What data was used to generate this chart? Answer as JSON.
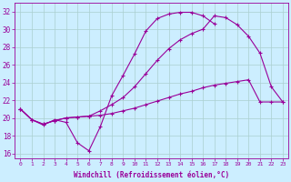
{
  "xlabel": "Windchill (Refroidissement éolien,°C)",
  "bg_color": "#cceeff",
  "line_color": "#990099",
  "grid_color": "#aacfcf",
  "xlim": [
    -0.5,
    23.5
  ],
  "ylim": [
    15.5,
    33.0
  ],
  "xticks": [
    0,
    1,
    2,
    3,
    4,
    5,
    6,
    7,
    8,
    9,
    10,
    11,
    12,
    13,
    14,
    15,
    16,
    17,
    18,
    19,
    20,
    21,
    22,
    23
  ],
  "yticks": [
    16,
    18,
    20,
    22,
    24,
    26,
    28,
    30,
    32
  ],
  "line1_x": [
    0,
    1,
    2,
    3,
    4,
    5,
    6,
    7,
    8,
    9,
    10,
    11,
    12,
    13,
    14,
    15,
    16,
    17
  ],
  "line1_y": [
    21.0,
    19.8,
    19.2,
    19.8,
    19.5,
    17.2,
    16.3,
    19.0,
    22.5,
    24.8,
    27.2,
    29.8,
    31.2,
    31.7,
    31.9,
    31.9,
    31.5,
    30.6
  ],
  "line2_x": [
    0,
    1,
    2,
    3,
    4,
    5,
    6,
    7,
    8,
    9,
    10,
    11,
    12,
    13,
    14,
    15,
    16,
    17,
    18,
    19,
    20,
    21,
    22,
    23
  ],
  "line2_y": [
    21.0,
    19.8,
    19.3,
    19.7,
    20.0,
    20.1,
    20.2,
    20.3,
    20.5,
    20.8,
    21.1,
    21.5,
    21.9,
    22.3,
    22.7,
    23.0,
    23.4,
    23.7,
    23.9,
    24.1,
    24.3,
    21.8,
    21.8,
    21.8
  ],
  "line3_x": [
    0,
    1,
    2,
    3,
    4,
    5,
    6,
    7,
    8,
    9,
    10,
    11,
    12,
    13,
    14,
    15,
    16,
    17,
    18,
    19,
    20,
    21,
    22,
    23
  ],
  "line3_y": [
    21.0,
    19.8,
    19.3,
    19.7,
    20.0,
    20.1,
    20.2,
    20.8,
    21.5,
    22.3,
    23.5,
    25.0,
    26.5,
    27.8,
    28.8,
    29.5,
    30.0,
    31.5,
    31.3,
    30.5,
    29.2,
    27.3,
    23.5,
    21.8
  ]
}
